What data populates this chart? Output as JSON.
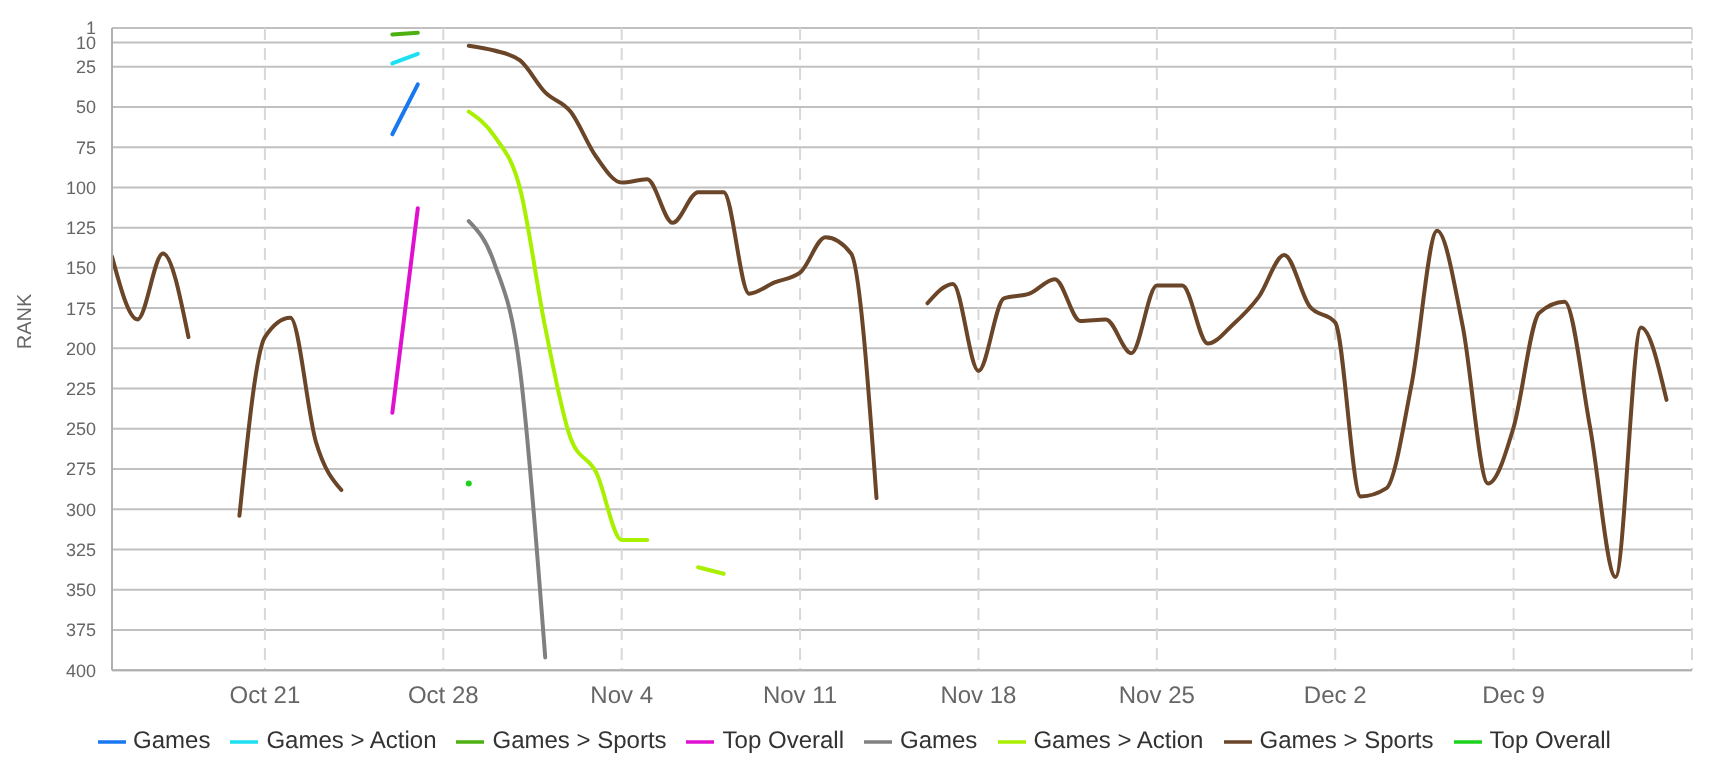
{
  "chart_data": {
    "type": "line",
    "ylabel": "RANK",
    "x": [
      "--10-15",
      "--10-16",
      "--10-17",
      "--10-18",
      "--10-19",
      "--10-20",
      "--10-21",
      "--10-22",
      "--10-23",
      "--10-24",
      "--10-25",
      "--10-26",
      "--10-27",
      "--10-28",
      "--10-29",
      "--10-30",
      "--10-31",
      "--11-01",
      "--11-02",
      "--11-03",
      "--11-04",
      "--11-05",
      "--11-06",
      "--11-07",
      "--11-08",
      "--11-09",
      "--11-10",
      "--11-11",
      "--11-12",
      "--11-13",
      "--11-14",
      "--11-15",
      "--11-16",
      "--11-17",
      "--11-18",
      "--11-19",
      "--11-20",
      "--11-21",
      "--11-22",
      "--11-23",
      "--11-24",
      "--11-25",
      "--11-26",
      "--11-27",
      "--11-28",
      "--11-29",
      "--11-30",
      "--12-01",
      "--12-02",
      "--12-03",
      "--12-04",
      "--12-05",
      "--12-06",
      "--12-07",
      "--12-08",
      "--12-09",
      "--12-10",
      "--12-11",
      "--12-12",
      "--12-13",
      "--12-14",
      "--12-15"
    ],
    "xlim": [
      "--10-15",
      "--12-16"
    ],
    "xticks": [
      {
        "value": "--10-21",
        "label": "Oct 21"
      },
      {
        "value": "--10-28",
        "label": "Oct 28"
      },
      {
        "value": "--11-04",
        "label": "Nov 4"
      },
      {
        "value": "--11-11",
        "label": "Nov 11"
      },
      {
        "value": "--11-18",
        "label": "Nov 18"
      },
      {
        "value": "--11-25",
        "label": "Nov 25"
      },
      {
        "value": "--12-02",
        "label": "Dec 2"
      },
      {
        "value": "--12-09",
        "label": "Dec 9"
      }
    ],
    "ylim": [
      400,
      1
    ],
    "yticks": [
      1,
      10,
      25,
      50,
      75,
      100,
      125,
      150,
      175,
      200,
      225,
      250,
      275,
      300,
      325,
      350,
      375,
      400
    ],
    "grid": true,
    "legend": "bottom",
    "line_style": "solid",
    "series": [
      {
        "name": "Games",
        "color": "#1878f0",
        "values": [
          null,
          null,
          null,
          null,
          null,
          null,
          null,
          null,
          null,
          null,
          null,
          67,
          36,
          null,
          null,
          null,
          null,
          null,
          null,
          null,
          null,
          null,
          null,
          null,
          null,
          null,
          null,
          null,
          null,
          null,
          null,
          null,
          null,
          null,
          null,
          null,
          null,
          null,
          null,
          null,
          null,
          null,
          null,
          null,
          null,
          null,
          null,
          null,
          null,
          null,
          null,
          null,
          null,
          null,
          null,
          null,
          null,
          null,
          null,
          null,
          null,
          null
        ]
      },
      {
        "name": "Games > Action",
        "color": "#1de0f0",
        "values": [
          null,
          null,
          null,
          null,
          null,
          null,
          null,
          null,
          null,
          null,
          null,
          23,
          17,
          null,
          null,
          null,
          null,
          null,
          null,
          null,
          null,
          null,
          null,
          null,
          null,
          null,
          null,
          null,
          null,
          null,
          null,
          null,
          null,
          null,
          null,
          null,
          null,
          null,
          null,
          null,
          null,
          null,
          null,
          null,
          null,
          null,
          null,
          null,
          null,
          null,
          null,
          null,
          null,
          null,
          null,
          null,
          null,
          null,
          null,
          null,
          null,
          null
        ]
      },
      {
        "name": "Games > Sports",
        "color": "#4cb010",
        "values": [
          null,
          null,
          null,
          null,
          null,
          null,
          null,
          null,
          null,
          null,
          null,
          5,
          4,
          null,
          null,
          null,
          null,
          null,
          null,
          null,
          null,
          null,
          null,
          null,
          null,
          null,
          null,
          null,
          null,
          null,
          null,
          null,
          null,
          null,
          null,
          null,
          null,
          null,
          null,
          null,
          null,
          null,
          null,
          null,
          null,
          null,
          null,
          null,
          null,
          null,
          null,
          null,
          null,
          null,
          null,
          null,
          null,
          null,
          null,
          null,
          null,
          null
        ]
      },
      {
        "name": "Top Overall",
        "color": "#e010d0",
        "values": [
          null,
          null,
          null,
          null,
          null,
          null,
          null,
          null,
          null,
          null,
          null,
          240,
          113,
          null,
          null,
          null,
          null,
          null,
          null,
          null,
          null,
          null,
          null,
          null,
          null,
          null,
          null,
          null,
          null,
          null,
          null,
          null,
          null,
          null,
          null,
          null,
          null,
          null,
          null,
          null,
          null,
          null,
          null,
          null,
          null,
          null,
          null,
          null,
          null,
          null,
          null,
          null,
          null,
          null,
          null,
          null,
          null,
          null,
          null,
          null,
          null,
          null
        ]
      },
      {
        "name": "Games",
        "color": "#808080",
        "values": [
          null,
          null,
          null,
          null,
          null,
          null,
          null,
          null,
          null,
          null,
          null,
          null,
          null,
          null,
          121,
          147,
          212,
          392,
          null,
          null,
          null,
          null,
          null,
          null,
          null,
          null,
          null,
          null,
          null,
          null,
          null,
          null,
          null,
          null,
          null,
          null,
          null,
          null,
          null,
          null,
          null,
          null,
          null,
          null,
          null,
          null,
          null,
          null,
          null,
          null,
          null,
          null,
          null,
          null,
          null,
          null,
          null,
          null,
          null,
          null,
          null,
          null
        ]
      },
      {
        "name": "Games > Action",
        "color": "#a8f000",
        "values": [
          null,
          null,
          null,
          null,
          null,
          null,
          null,
          null,
          null,
          null,
          null,
          null,
          null,
          null,
          53,
          68,
          100,
          187,
          256,
          277,
          319,
          319,
          null,
          336,
          340,
          null,
          null,
          null,
          null,
          null,
          null,
          null,
          null,
          null,
          null,
          null,
          null,
          null,
          null,
          null,
          null,
          null,
          null,
          null,
          null,
          null,
          null,
          null,
          null,
          null,
          null,
          null,
          null,
          null,
          null,
          null,
          null,
          null,
          null,
          null,
          null,
          null
        ]
      },
      {
        "name": "Games > Sports",
        "color": "#6b4528",
        "values": [
          143,
          182,
          141,
          193,
          null,
          304,
          193,
          181,
          258,
          288,
          null,
          null,
          null,
          null,
          12,
          15,
          21,
          41,
          53,
          81,
          97,
          95,
          122,
          103,
          103,
          166,
          159,
          153,
          131,
          141,
          293,
          null,
          172,
          160,
          214,
          169,
          166,
          157,
          183,
          182,
          203,
          161,
          161,
          197,
          185,
          168,
          142,
          174,
          184,
          292,
          287,
          222,
          127,
          186,
          284,
          249,
          178,
          171,
          249,
          342,
          187,
          232
        ]
      },
      {
        "name": "Top Overall",
        "color": "#1cd21c",
        "marker": "circle",
        "values": [
          null,
          null,
          null,
          null,
          null,
          null,
          null,
          null,
          null,
          null,
          null,
          null,
          null,
          null,
          284,
          null,
          null,
          null,
          null,
          null,
          null,
          null,
          null,
          null,
          null,
          null,
          null,
          null,
          null,
          null,
          null,
          null,
          null,
          null,
          null,
          null,
          null,
          null,
          null,
          null,
          null,
          null,
          null,
          null,
          null,
          null,
          null,
          null,
          null,
          null,
          null,
          null,
          null,
          null,
          null,
          null,
          null,
          null,
          null,
          null,
          null,
          null
        ]
      }
    ]
  }
}
